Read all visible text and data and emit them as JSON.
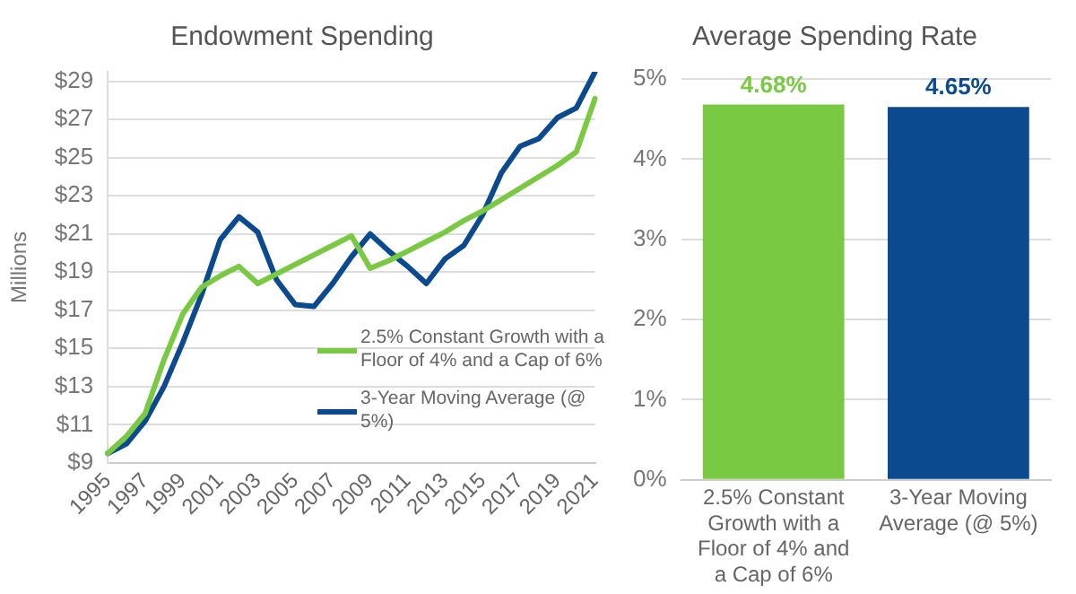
{
  "chart_data": [
    {
      "type": "line",
      "title": "Endowment Spending",
      "ylabel": "Millions",
      "categories": [
        "1995",
        null,
        "1997",
        null,
        "1999",
        null,
        "2001",
        null,
        "2003",
        null,
        "2005",
        null,
        "2007",
        null,
        "2009",
        null,
        "2011",
        null,
        "2013",
        null,
        "2015",
        null,
        "2017",
        null,
        "2019",
        null,
        "2021"
      ],
      "series": [
        {
          "name": "2.5% Constant Growth with a Floor of 4% and a Cap of 6%",
          "color": "#7ac943",
          "values": [
            9.5,
            10.4,
            11.6,
            14.4,
            16.8,
            18.2,
            18.8,
            19.3,
            18.4,
            18.9,
            19.4,
            19.9,
            20.4,
            20.9,
            19.2,
            19.6,
            20.1,
            20.6,
            21.1,
            21.7,
            22.2,
            22.8,
            23.4,
            24.0,
            24.6,
            25.3,
            28.1
          ]
        },
        {
          "name": "3-Year Moving Average (@ 5%)",
          "color": "#0b4a8f",
          "values": [
            9.5,
            10.0,
            11.2,
            13.0,
            15.3,
            17.8,
            20.7,
            21.9,
            21.1,
            18.6,
            17.3,
            17.2,
            18.4,
            19.8,
            21.0,
            20.1,
            19.3,
            18.4,
            19.7,
            20.4,
            22.0,
            24.2,
            25.6,
            26.0,
            27.1,
            27.6,
            29.5
          ]
        }
      ],
      "ylim": [
        9,
        29.5
      ],
      "yticks": [
        {
          "value": 9,
          "label": "$9"
        },
        {
          "value": 11,
          "label": "$11"
        },
        {
          "value": 13,
          "label": "$13"
        },
        {
          "value": 15,
          "label": "$15"
        },
        {
          "value": 17,
          "label": "$17"
        },
        {
          "value": 19,
          "label": "$19"
        },
        {
          "value": 21,
          "label": "$21"
        },
        {
          "value": 23,
          "label": "$23"
        },
        {
          "value": 25,
          "label": "$25"
        },
        {
          "value": 27,
          "label": "$27"
        },
        {
          "value": 29,
          "label": "$29"
        }
      ],
      "grid": "y",
      "legend": "bottom right",
      "marker": "none",
      "line_style": "solid"
    },
    {
      "type": "bar",
      "title": "Average Spending Rate",
      "categories": [
        "2.5% Constant Growth with a Floor of 4% and a Cap of 6%",
        "3-Year Moving Average (@ 5%)"
      ],
      "values": [
        4.68,
        4.65
      ],
      "colors": [
        "#7ac943",
        "#0b4a8f"
      ],
      "value_labels": [
        "4.68%",
        "4.65%"
      ],
      "ylim": [
        0,
        5
      ],
      "yticks": [
        {
          "value": 0,
          "label": "0%"
        },
        {
          "value": 1,
          "label": "1%"
        },
        {
          "value": 2,
          "label": "2%"
        },
        {
          "value": 3,
          "label": "3%"
        },
        {
          "value": 4,
          "label": "4%"
        },
        {
          "value": 5,
          "label": "5%"
        }
      ],
      "grid": "y",
      "legend": false
    }
  ]
}
